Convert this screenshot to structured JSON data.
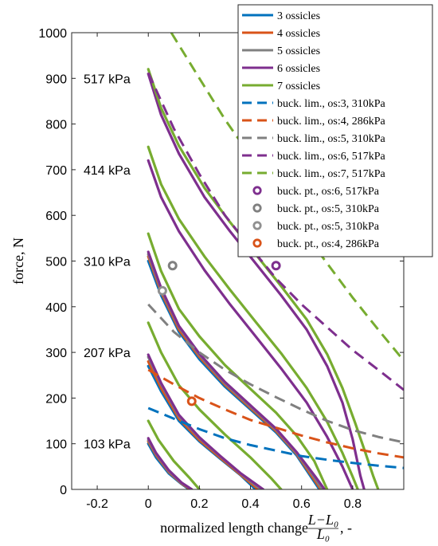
{
  "chart_data": {
    "type": "line",
    "xlabel": "normalized length change",
    "xlabel_fraction": {
      "num": "L−L₀",
      "den": "L₀"
    },
    "xlabel_suffix": ", -",
    "ylabel": "force, N",
    "xlim": [
      -0.3,
      1.0
    ],
    "ylim": [
      0,
      1000
    ],
    "xticks": [
      -0.2,
      0,
      0.2,
      0.4,
      0.6,
      0.8
    ],
    "xtick_labels": [
      "-0.2",
      "0",
      "0.2",
      "0.4",
      "0.6",
      "0.8"
    ],
    "yticks": [
      0,
      100,
      200,
      300,
      400,
      500,
      600,
      700,
      800,
      900,
      1000
    ],
    "ytick_labels": [
      "0",
      "100",
      "200",
      "300",
      "400",
      "500",
      "600",
      "700",
      "800",
      "900",
      "1000"
    ],
    "grid": false,
    "legend_position": "top-right",
    "colors": {
      "3": "#0072BD",
      "4": "#D95319",
      "5": "#808080",
      "6": "#7E2F8E",
      "7": "#77AC30"
    },
    "pressure_labels": [
      {
        "text": "517 kPa",
        "y": 900
      },
      {
        "text": "414 kPa",
        "y": 700
      },
      {
        "text": "310 kPa",
        "y": 500
      },
      {
        "text": "207 kPa",
        "y": 300
      },
      {
        "text": "103 kPa",
        "y": 100
      }
    ],
    "series": [
      {
        "name": "3 ossicles",
        "kind": "line",
        "color": "#0072BD",
        "curves": [
          [
            [
              0,
              100
            ],
            [
              0.03,
              70
            ],
            [
              0.08,
              35
            ],
            [
              0.13,
              12
            ],
            [
              0.16,
              0
            ]
          ],
          [
            [
              0,
              270
            ],
            [
              0.05,
              215
            ],
            [
              0.12,
              150
            ],
            [
              0.2,
              105
            ],
            [
              0.28,
              68
            ],
            [
              0.36,
              32
            ],
            [
              0.42,
              0
            ]
          ],
          [
            [
              0,
              500
            ],
            [
              0.05,
              425
            ],
            [
              0.12,
              345
            ],
            [
              0.2,
              285
            ],
            [
              0.3,
              225
            ],
            [
              0.4,
              175
            ],
            [
              0.5,
              125
            ],
            [
              0.58,
              75
            ],
            [
              0.64,
              25
            ],
            [
              0.67,
              0
            ]
          ]
        ]
      },
      {
        "name": "4 ossicles",
        "kind": "line",
        "color": "#D95319",
        "curves": [
          [
            [
              0,
              105
            ],
            [
              0.03,
              75
            ],
            [
              0.08,
              38
            ],
            [
              0.13,
              13
            ],
            [
              0.165,
              0
            ]
          ],
          [
            [
              0,
              280
            ],
            [
              0.05,
              222
            ],
            [
              0.12,
              155
            ],
            [
              0.2,
              108
            ],
            [
              0.28,
              70
            ],
            [
              0.36,
              33
            ],
            [
              0.43,
              0
            ]
          ],
          [
            [
              0,
              510
            ],
            [
              0.05,
              432
            ],
            [
              0.12,
              350
            ],
            [
              0.2,
              290
            ],
            [
              0.3,
              229
            ],
            [
              0.4,
              178
            ],
            [
              0.5,
              128
            ],
            [
              0.58,
              78
            ],
            [
              0.645,
              25
            ],
            [
              0.675,
              0
            ]
          ]
        ]
      },
      {
        "name": "5 ossicles",
        "kind": "line",
        "color": "#808080",
        "curves": [
          [
            [
              0,
              108
            ],
            [
              0.03,
              78
            ],
            [
              0.08,
              40
            ],
            [
              0.13,
              14
            ],
            [
              0.17,
              0
            ]
          ],
          [
            [
              0,
              290
            ],
            [
              0.05,
              230
            ],
            [
              0.12,
              160
            ],
            [
              0.2,
              112
            ],
            [
              0.28,
              73
            ],
            [
              0.36,
              35
            ],
            [
              0.44,
              0
            ]
          ],
          [
            [
              0,
              515
            ],
            [
              0.05,
              437
            ],
            [
              0.12,
              355
            ],
            [
              0.2,
              294
            ],
            [
              0.3,
              232
            ],
            [
              0.4,
              181
            ],
            [
              0.5,
              131
            ],
            [
              0.58,
              80
            ],
            [
              0.65,
              26
            ],
            [
              0.68,
              0
            ]
          ]
        ]
      },
      {
        "name": "6 ossicles",
        "kind": "line",
        "color": "#7E2F8E",
        "curves": [
          [
            [
              0,
              112
            ],
            [
              0.03,
              80
            ],
            [
              0.08,
              42
            ],
            [
              0.13,
              15
            ],
            [
              0.17,
              0
            ]
          ],
          [
            [
              0,
              295
            ],
            [
              0.05,
              233
            ],
            [
              0.12,
              163
            ],
            [
              0.2,
              114
            ],
            [
              0.28,
              74
            ],
            [
              0.36,
              36
            ],
            [
              0.45,
              0
            ]
          ],
          [
            [
              0,
              520
            ],
            [
              0.05,
              441
            ],
            [
              0.12,
              358
            ],
            [
              0.2,
              297
            ],
            [
              0.3,
              235
            ],
            [
              0.4,
              184
            ],
            [
              0.5,
              133
            ],
            [
              0.58,
              82
            ],
            [
              0.655,
              27
            ],
            [
              0.69,
              0
            ]
          ],
          [
            [
              0,
              720
            ],
            [
              0.05,
              640
            ],
            [
              0.12,
              565
            ],
            [
              0.22,
              480
            ],
            [
              0.32,
              405
            ],
            [
              0.42,
              335
            ],
            [
              0.52,
              265
            ],
            [
              0.62,
              190
            ],
            [
              0.7,
              115
            ],
            [
              0.76,
              50
            ],
            [
              0.8,
              0
            ]
          ],
          [
            [
              0,
              910
            ],
            [
              0.05,
              820
            ],
            [
              0.12,
              735
            ],
            [
              0.22,
              640
            ],
            [
              0.32,
              565
            ],
            [
              0.42,
              495
            ],
            [
              0.52,
              425
            ],
            [
              0.62,
              350
            ],
            [
              0.7,
              270
            ],
            [
              0.76,
              190
            ],
            [
              0.8,
              110
            ],
            [
              0.83,
              30
            ],
            [
              0.845,
              0
            ]
          ]
        ]
      },
      {
        "name": "7 ossicles",
        "kind": "line",
        "color": "#77AC30",
        "curves": [
          [
            [
              0,
              150
            ],
            [
              0.04,
              108
            ],
            [
              0.1,
              62
            ],
            [
              0.16,
              26
            ],
            [
              0.2,
              0
            ]
          ],
          [
            [
              0,
              365
            ],
            [
              0.05,
              300
            ],
            [
              0.12,
              228
            ],
            [
              0.2,
              175
            ],
            [
              0.3,
              120
            ],
            [
              0.4,
              70
            ],
            [
              0.48,
              25
            ],
            [
              0.52,
              0
            ]
          ],
          [
            [
              0,
              560
            ],
            [
              0.05,
              478
            ],
            [
              0.12,
              395
            ],
            [
              0.2,
              335
            ],
            [
              0.3,
              272
            ],
            [
              0.4,
              220
            ],
            [
              0.5,
              168
            ],
            [
              0.58,
              118
            ],
            [
              0.65,
              62
            ],
            [
              0.7,
              0
            ]
          ],
          [
            [
              0,
              750
            ],
            [
              0.05,
              668
            ],
            [
              0.12,
              592
            ],
            [
              0.22,
              510
            ],
            [
              0.32,
              437
            ],
            [
              0.42,
              367
            ],
            [
              0.52,
              298
            ],
            [
              0.62,
              222
            ],
            [
              0.7,
              148
            ],
            [
              0.76,
              80
            ],
            [
              0.8,
              28
            ],
            [
              0.82,
              0
            ]
          ],
          [
            [
              0,
              920
            ],
            [
              0.05,
              835
            ],
            [
              0.12,
              752
            ],
            [
              0.22,
              660
            ],
            [
              0.32,
              585
            ],
            [
              0.42,
              515
            ],
            [
              0.52,
              445
            ],
            [
              0.62,
              372
            ],
            [
              0.7,
              296
            ],
            [
              0.76,
              222
            ],
            [
              0.81,
              145
            ],
            [
              0.85,
              80
            ],
            [
              0.88,
              30
            ],
            [
              0.9,
              0
            ]
          ]
        ]
      },
      {
        "name": "buck. lim., os:3, 310kPa",
        "kind": "dashed",
        "color": "#0072BD",
        "curves": [
          [
            [
              0,
              178
            ],
            [
              0.1,
              155
            ],
            [
              0.2,
              132
            ],
            [
              0.3,
              112
            ],
            [
              0.4,
              97
            ],
            [
              0.5,
              85
            ],
            [
              0.6,
              73
            ],
            [
              0.7,
              65
            ],
            [
              0.8,
              58
            ],
            [
              0.9,
              52
            ],
            [
              1.0,
              47
            ]
          ]
        ]
      },
      {
        "name": "buck. lim., os:4, 286kPa",
        "kind": "dashed",
        "color": "#D95319",
        "curves": [
          [
            [
              0,
              262
            ],
            [
              0.1,
              230
            ],
            [
              0.2,
              200
            ],
            [
              0.3,
              175
            ],
            [
              0.4,
              152
            ],
            [
              0.5,
              135
            ],
            [
              0.6,
              118
            ],
            [
              0.7,
              103
            ],
            [
              0.8,
              90
            ],
            [
              0.9,
              79
            ],
            [
              1.0,
              70
            ]
          ]
        ]
      },
      {
        "name": "buck. lim., os:5, 310kPa",
        "kind": "dashed",
        "color": "#808080",
        "curves": [
          [
            [
              0,
              405
            ],
            [
              0.1,
              345
            ],
            [
              0.2,
              300
            ],
            [
              0.3,
              262
            ],
            [
              0.4,
              230
            ],
            [
              0.5,
              202
            ],
            [
              0.6,
              175
            ],
            [
              0.7,
              150
            ],
            [
              0.8,
              130
            ],
            [
              0.9,
              115
            ],
            [
              1.0,
              103
            ]
          ]
        ]
      },
      {
        "name": "buck. lim., os:6, 517kPa",
        "kind": "dashed",
        "color": "#7E2F8E",
        "curves": [
          [
            [
              0,
              912
            ],
            [
              0.1,
              790
            ],
            [
              0.2,
              690
            ],
            [
              0.3,
              600
            ],
            [
              0.4,
              530
            ],
            [
              0.5,
              462
            ],
            [
              0.6,
              405
            ],
            [
              0.7,
              355
            ],
            [
              0.8,
              305
            ],
            [
              0.9,
              262
            ],
            [
              1.0,
              218
            ]
          ]
        ]
      },
      {
        "name": "buck. lim., os:7, 517kPa",
        "kind": "dashed",
        "color": "#77AC30",
        "curves": [
          [
            [
              0.09,
              1000
            ],
            [
              0.2,
              900
            ],
            [
              0.3,
              810
            ],
            [
              0.4,
              730
            ],
            [
              0.5,
              650
            ],
            [
              0.6,
              570
            ],
            [
              0.7,
              495
            ],
            [
              0.8,
              420
            ],
            [
              0.9,
              350
            ],
            [
              1.0,
              282
            ]
          ]
        ]
      },
      {
        "name": "buck. pt., os:6, 517kPa",
        "kind": "marker",
        "color": "#7E2F8E",
        "points": [
          [
            0.5,
            490
          ]
        ]
      },
      {
        "name": "buck. pt., os:5, 310kPa",
        "kind": "marker",
        "color": "#808080",
        "points": [
          [
            0.095,
            490
          ]
        ]
      },
      {
        "name": "buck. pt., os:5, 310kPa",
        "kind": "marker",
        "color": "#909090",
        "points": [
          [
            0.055,
            435
          ]
        ]
      },
      {
        "name": "buck. pt., os:4, 286kPa",
        "kind": "marker",
        "color": "#D95319",
        "points": [
          [
            0.17,
            193
          ]
        ]
      }
    ]
  }
}
